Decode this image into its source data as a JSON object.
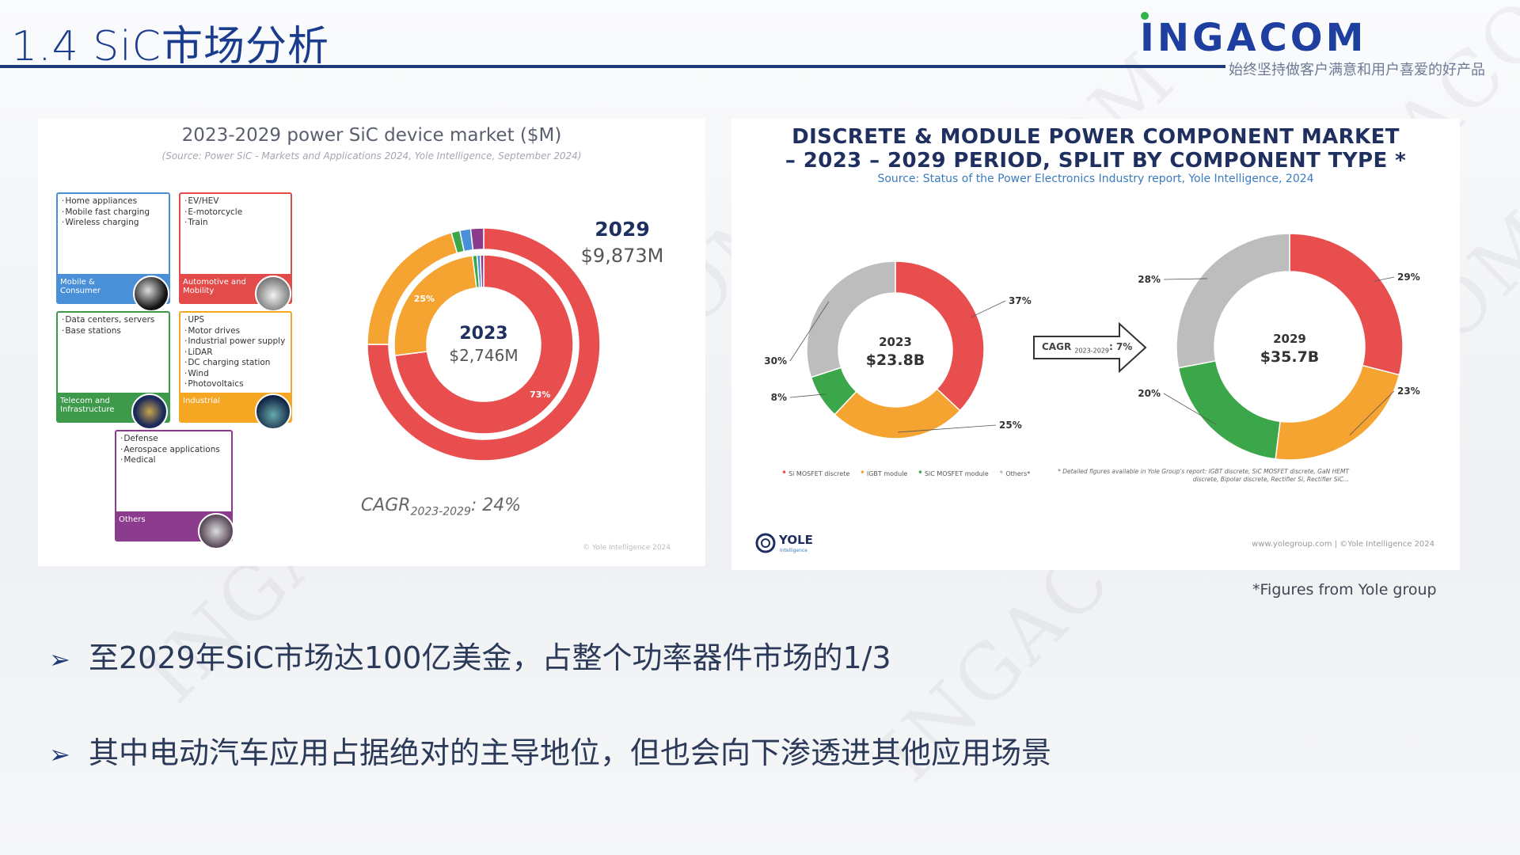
{
  "slide": {
    "title": "1.4 SiC市场分析",
    "logo_text": "INGACOM",
    "slogan": "始终坚持做客户满意和用户喜爱的好产品",
    "watermark": "INGACOM",
    "figure_credit": "*Figures from Yole group",
    "bullets": [
      "至2029年SiC市场达100亿美金，占整个功率器件市场的1/3",
      "其中电动汽车应用占据绝对的主导地位，但也会向下渗透进其他应用场景"
    ],
    "bullet_marker": "➢"
  },
  "left_panel": {
    "title": "2023-2029 power SiC device market ($M)",
    "source": "(Source: Power SiC - Markets and Applications 2024, Yole Intelligence, September 2024)",
    "cagr_prefix": "CAGR",
    "cagr_sub": "2023-2029",
    "cagr_value": ": 24%",
    "copyright": "© Yole Intelligence 2024",
    "app_cards": [
      {
        "items": [
          "Home appliances",
          "Mobile fast charging",
          "Wireless charging"
        ],
        "band": "Mobile & Consumer",
        "color": "#4a90d9"
      },
      {
        "items": [
          "EV/HEV",
          "E-motorcycle",
          "Train"
        ],
        "band": "Automotive and Mobility",
        "color": "#e34b4b"
      },
      {
        "items": [
          "Data centers, servers",
          "Base stations"
        ],
        "band": "Telecom and Infrastructure",
        "color": "#3c9a4a"
      },
      {
        "items": [
          "UPS",
          "Motor drives",
          "Industrial power supply",
          "LiDAR",
          "DC charging station",
          "Wind",
          "Photovoltaics"
        ],
        "band": "Industrial",
        "color": "#f5a623"
      },
      {
        "items": [
          "Defense",
          "Aerospace applications",
          "Medical"
        ],
        "band": "Others",
        "color": "#8b3c8c"
      }
    ]
  },
  "right_panel": {
    "title_line1": "DISCRETE & MODULE POWER COMPONENT MARKET",
    "title_line2": "– 2023 – 2029 PERIOD, SPLIT BY COMPONENT TYPE *",
    "source": "Source: Status of the Power Electronics Industry report, Yole Intelligence, 2024",
    "cagr_label": "CAGR",
    "cagr_sub": "2023-2029",
    "cagr_value": ": 7%",
    "legend": [
      "Si MOSFET discrete",
      "IGBT module",
      "SiC MOSFET module",
      "Others*"
    ],
    "footnote": "* Detailed figures available in Yole Group's report: IGBT discrete, SiC MOSFET discrete, GaN HEMT discrete, Bipolar discrete, Rectifier Si, Rectifier SiC...",
    "yole_logo_text": "YOLE",
    "yole_logo_sub": "Intelligence",
    "copyright": "www.yolegroup.com | ©Yole Intelligence 2024"
  },
  "chart_data": [
    {
      "type": "pie",
      "style": "nested-donut",
      "title": "2023-2029 power SiC device market ($M)",
      "rings": [
        {
          "name": "2023",
          "total_label": "$2,746M",
          "categories": [
            "Automotive and Mobility",
            "Industrial",
            "Telecom and Infrastructure",
            "Mobile & Consumer",
            "Others"
          ],
          "values": [
            73,
            25,
            0.8,
            0.6,
            0.6
          ],
          "labels": [
            "73%",
            "25%",
            "",
            "",
            ""
          ]
        },
        {
          "name": "2029",
          "total_label": "$9,873M",
          "categories": [
            "Automotive and Mobility",
            "Industrial",
            "Telecom and Infrastructure",
            "Mobile & Consumer",
            "Others"
          ],
          "values": [
            75,
            20.5,
            1.2,
            1.5,
            1.8
          ],
          "labels": [
            "",
            "",
            "",
            "",
            ""
          ]
        }
      ],
      "colors": [
        "#e94e4e",
        "#f5a431",
        "#3ba64a",
        "#4a90d9",
        "#8b3c8c"
      ]
    },
    {
      "type": "pie",
      "style": "donut",
      "name": "2023",
      "total_label": "$23.8B",
      "categories": [
        "Si MOSFET discrete",
        "IGBT module",
        "SiC MOSFET module",
        "Others"
      ],
      "values": [
        37,
        25,
        8,
        30
      ],
      "labels": [
        "37%",
        "25%",
        "8%",
        "30%"
      ],
      "colors": [
        "#e94e4e",
        "#f5a431",
        "#3ba64a",
        "#bdbdbd"
      ]
    },
    {
      "type": "pie",
      "style": "donut",
      "name": "2029",
      "total_label": "$35.7B",
      "categories": [
        "Si MOSFET discrete",
        "IGBT module",
        "SiC MOSFET module",
        "Others"
      ],
      "values": [
        29,
        23,
        20,
        28
      ],
      "labels": [
        "29%",
        "23%",
        "20%",
        "28%"
      ],
      "colors": [
        "#e94e4e",
        "#f5a431",
        "#3ba64a",
        "#bdbdbd"
      ]
    }
  ]
}
